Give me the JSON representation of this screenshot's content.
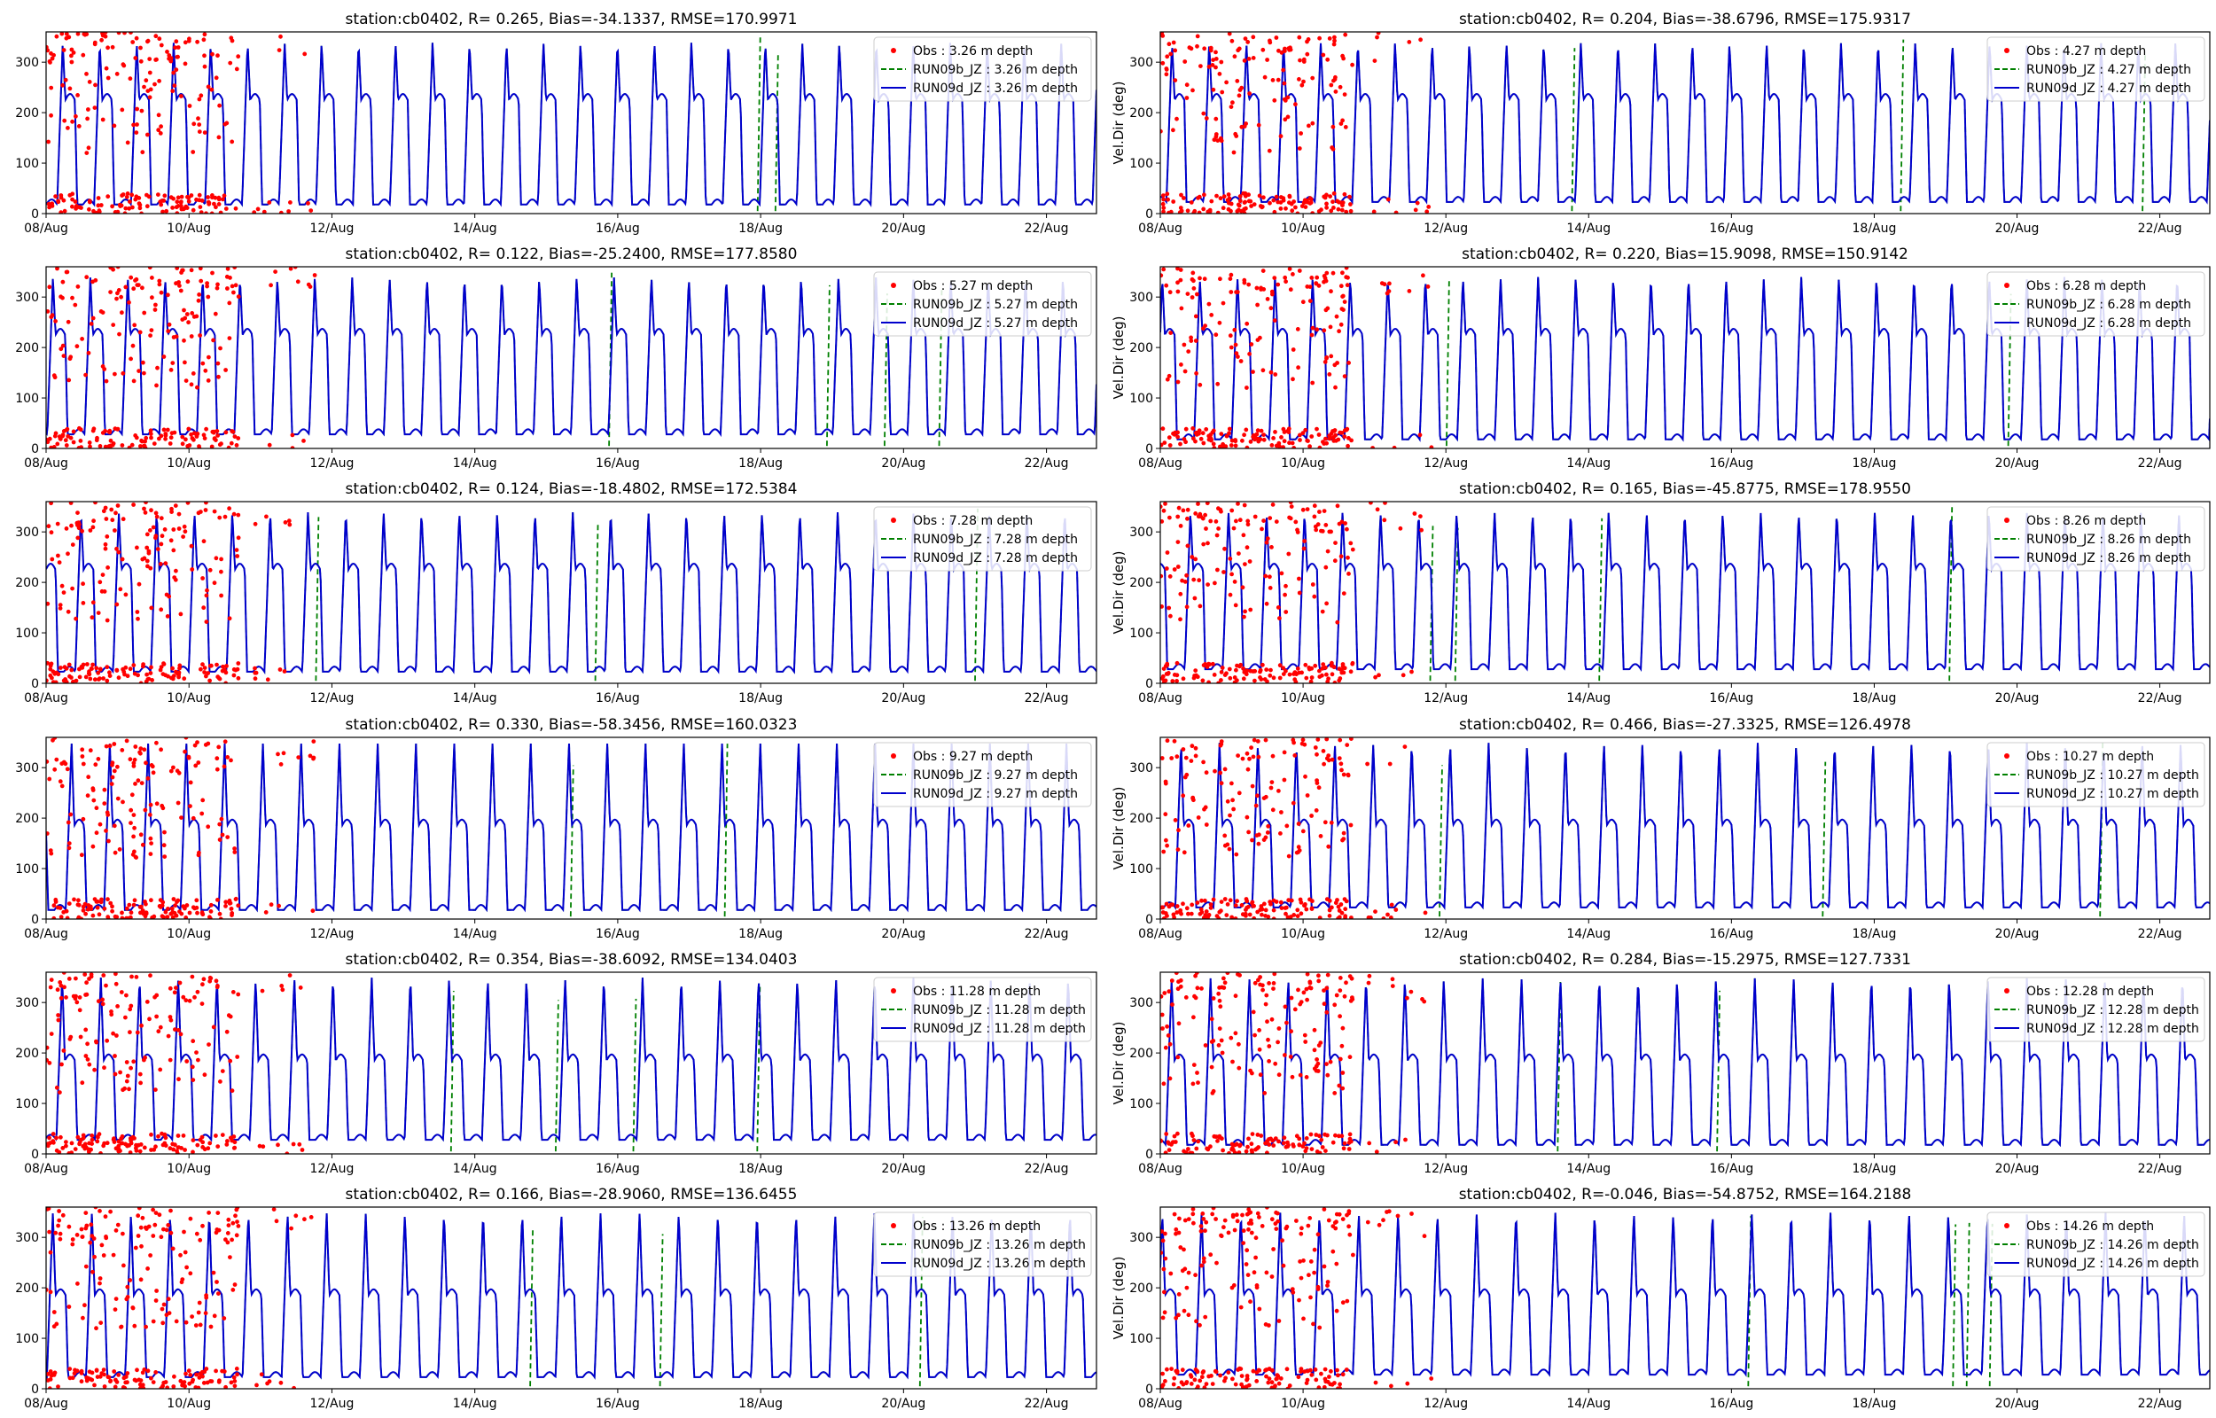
{
  "chart_data": [
    {
      "type": "line",
      "title": "station:cb0402, R= 0.265, Bias=-34.1337, RMSE=170.9971",
      "xlabel": "",
      "ylabel": "",
      "ylim": [
        0,
        360
      ],
      "yticks": [
        0,
        100,
        200,
        300
      ],
      "x_categories": [
        "08/Aug",
        "10/Aug",
        "12/Aug",
        "14/Aug",
        "16/Aug",
        "18/Aug",
        "20/Aug",
        "22/Aug"
      ],
      "xlim": [
        "08/Aug",
        "22/Aug + ~0.7 day"
      ],
      "legend_position": "top-right",
      "series": [
        {
          "name": "Obs : 3.26 m depth",
          "style": "red dots"
        },
        {
          "name": "RUN09b_JZ : 3.26 m depth",
          "style": "green dashed"
        },
        {
          "name": "RUN09d_JZ : 3.26 m depth",
          "style": "blue solid"
        }
      ]
    },
    {
      "type": "line",
      "title": "station:cb0402, R= 0.204, Bias=-38.6796, RMSE=175.9317",
      "xlabel": "",
      "ylabel": "Vel.Dir (deg)",
      "ylim": [
        0,
        360
      ],
      "yticks": [
        0,
        100,
        200,
        300
      ],
      "x_categories": [
        "08/Aug",
        "10/Aug",
        "12/Aug",
        "14/Aug",
        "16/Aug",
        "18/Aug",
        "20/Aug",
        "22/Aug"
      ],
      "legend_position": "top-right",
      "series": [
        {
          "name": "Obs : 4.27 m depth",
          "style": "red dots"
        },
        {
          "name": "RUN09b_JZ : 4.27 m depth",
          "style": "green dashed"
        },
        {
          "name": "RUN09d_JZ : 4.27 m depth",
          "style": "blue solid"
        }
      ]
    },
    {
      "type": "line",
      "title": "station:cb0402, R= 0.122, Bias=-25.2400, RMSE=177.8580",
      "xlabel": "",
      "ylabel": "",
      "ylim": [
        0,
        360
      ],
      "yticks": [
        0,
        100,
        200,
        300
      ],
      "x_categories": [
        "08/Aug",
        "10/Aug",
        "12/Aug",
        "14/Aug",
        "16/Aug",
        "18/Aug",
        "20/Aug",
        "22/Aug"
      ],
      "legend_position": "top-right",
      "series": [
        {
          "name": "Obs : 5.27 m depth",
          "style": "red dots"
        },
        {
          "name": "RUN09b_JZ : 5.27 m depth",
          "style": "green dashed"
        },
        {
          "name": "RUN09d_JZ : 5.27 m depth",
          "style": "blue solid"
        }
      ]
    },
    {
      "type": "line",
      "title": "station:cb0402, R= 0.220, Bias=15.9098, RMSE=150.9142",
      "xlabel": "",
      "ylabel": "Vel.Dir (deg)",
      "ylim": [
        0,
        360
      ],
      "yticks": [
        0,
        100,
        200,
        300
      ],
      "x_categories": [
        "08/Aug",
        "10/Aug",
        "12/Aug",
        "14/Aug",
        "16/Aug",
        "18/Aug",
        "20/Aug",
        "22/Aug"
      ],
      "legend_position": "top-right",
      "series": [
        {
          "name": "Obs : 6.28 m depth",
          "style": "red dots"
        },
        {
          "name": "RUN09b_JZ : 6.28 m depth",
          "style": "green dashed"
        },
        {
          "name": "RUN09d_JZ : 6.28 m depth",
          "style": "blue solid"
        }
      ]
    },
    {
      "type": "line",
      "title": "station:cb0402, R= 0.124, Bias=-18.4802, RMSE=172.5384",
      "xlabel": "",
      "ylabel": "",
      "ylim": [
        0,
        360
      ],
      "yticks": [
        0,
        100,
        200,
        300
      ],
      "x_categories": [
        "08/Aug",
        "10/Aug",
        "12/Aug",
        "14/Aug",
        "16/Aug",
        "18/Aug",
        "20/Aug",
        "22/Aug"
      ],
      "legend_position": "top-right",
      "series": [
        {
          "name": "Obs : 7.28 m depth",
          "style": "red dots"
        },
        {
          "name": "RUN09b_JZ : 7.28 m depth",
          "style": "green dashed"
        },
        {
          "name": "RUN09d_JZ : 7.28 m depth",
          "style": "blue solid"
        }
      ]
    },
    {
      "type": "line",
      "title": "station:cb0402, R= 0.165, Bias=-45.8775, RMSE=178.9550",
      "xlabel": "",
      "ylabel": "Vel.Dir (deg)",
      "ylim": [
        0,
        360
      ],
      "yticks": [
        0,
        100,
        200,
        300
      ],
      "x_categories": [
        "08/Aug",
        "10/Aug",
        "12/Aug",
        "14/Aug",
        "16/Aug",
        "18/Aug",
        "20/Aug",
        "22/Aug"
      ],
      "legend_position": "top-right",
      "series": [
        {
          "name": "Obs : 8.26 m depth",
          "style": "red dots"
        },
        {
          "name": "RUN09b_JZ : 8.26 m depth",
          "style": "green dashed"
        },
        {
          "name": "RUN09d_JZ : 8.26 m depth",
          "style": "blue solid"
        }
      ]
    },
    {
      "type": "line",
      "title": "station:cb0402, R= 0.330, Bias=-58.3456, RMSE=160.0323",
      "xlabel": "",
      "ylabel": "",
      "ylim": [
        0,
        360
      ],
      "yticks": [
        0,
        100,
        200,
        300
      ],
      "x_categories": [
        "08/Aug",
        "10/Aug",
        "12/Aug",
        "14/Aug",
        "16/Aug",
        "18/Aug",
        "20/Aug",
        "22/Aug"
      ],
      "legend_position": "top-right",
      "series": [
        {
          "name": "Obs : 9.27 m depth",
          "style": "red dots"
        },
        {
          "name": "RUN09b_JZ : 9.27 m depth",
          "style": "green dashed"
        },
        {
          "name": "RUN09d_JZ : 9.27 m depth",
          "style": "blue solid"
        }
      ]
    },
    {
      "type": "line",
      "title": "station:cb0402, R= 0.466, Bias=-27.3325, RMSE=126.4978",
      "xlabel": "",
      "ylabel": "Vel.Dir (deg)",
      "ylim": [
        0,
        360
      ],
      "yticks": [
        0,
        100,
        200,
        300
      ],
      "x_categories": [
        "08/Aug",
        "10/Aug",
        "12/Aug",
        "14/Aug",
        "16/Aug",
        "18/Aug",
        "20/Aug",
        "22/Aug"
      ],
      "legend_position": "top-right",
      "series": [
        {
          "name": "Obs : 10.27 m depth",
          "style": "red dots"
        },
        {
          "name": "RUN09b_JZ : 10.27 m depth",
          "style": "green dashed"
        },
        {
          "name": "RUN09d_JZ : 10.27 m depth",
          "style": "blue solid"
        }
      ]
    },
    {
      "type": "line",
      "title": "station:cb0402, R= 0.354, Bias=-38.6092, RMSE=134.0403",
      "xlabel": "",
      "ylabel": "",
      "ylim": [
        0,
        360
      ],
      "yticks": [
        0,
        100,
        200,
        300
      ],
      "x_categories": [
        "08/Aug",
        "10/Aug",
        "12/Aug",
        "14/Aug",
        "16/Aug",
        "18/Aug",
        "20/Aug",
        "22/Aug"
      ],
      "legend_position": "top-right",
      "series": [
        {
          "name": "Obs : 11.28 m depth",
          "style": "red dots"
        },
        {
          "name": "RUN09b_JZ : 11.28 m depth",
          "style": "green dashed"
        },
        {
          "name": "RUN09d_JZ : 11.28 m depth",
          "style": "blue solid"
        }
      ]
    },
    {
      "type": "line",
      "title": "station:cb0402, R= 0.284, Bias=-15.2975, RMSE=127.7331",
      "xlabel": "",
      "ylabel": "Vel.Dir (deg)",
      "ylim": [
        0,
        360
      ],
      "yticks": [
        0,
        100,
        200,
        300
      ],
      "x_categories": [
        "08/Aug",
        "10/Aug",
        "12/Aug",
        "14/Aug",
        "16/Aug",
        "18/Aug",
        "20/Aug",
        "22/Aug"
      ],
      "legend_position": "top-right",
      "series": [
        {
          "name": "Obs : 12.28 m depth",
          "style": "red dots"
        },
        {
          "name": "RUN09b_JZ : 12.28 m depth",
          "style": "green dashed"
        },
        {
          "name": "RUN09d_JZ : 12.28 m depth",
          "style": "blue solid"
        }
      ]
    },
    {
      "type": "line",
      "title": "station:cb0402, R= 0.166, Bias=-28.9060, RMSE=136.6455",
      "xlabel": "",
      "ylabel": "",
      "ylim": [
        0,
        360
      ],
      "yticks": [
        0,
        100,
        200,
        300
      ],
      "x_categories": [
        "08/Aug",
        "10/Aug",
        "12/Aug",
        "14/Aug",
        "16/Aug",
        "18/Aug",
        "20/Aug",
        "22/Aug"
      ],
      "legend_position": "top-right",
      "series": [
        {
          "name": "Obs : 13.26 m depth",
          "style": "red dots"
        },
        {
          "name": "RUN09b_JZ : 13.26 m depth",
          "style": "green dashed"
        },
        {
          "name": "RUN09d_JZ : 13.26 m depth",
          "style": "blue solid"
        }
      ]
    },
    {
      "type": "line",
      "title": "station:cb0402, R=-0.046, Bias=-54.8752, RMSE=164.2188",
      "xlabel": "",
      "ylabel": "Vel.Dir (deg)",
      "ylim": [
        0,
        360
      ],
      "yticks": [
        0,
        100,
        200,
        300
      ],
      "x_categories": [
        "08/Aug",
        "10/Aug",
        "12/Aug",
        "14/Aug",
        "16/Aug",
        "18/Aug",
        "20/Aug",
        "22/Aug"
      ],
      "legend_position": "top-right",
      "series": [
        {
          "name": "Obs : 14.26 m depth",
          "style": "red dots"
        },
        {
          "name": "RUN09b_JZ : 14.26 m depth",
          "style": "green dashed"
        },
        {
          "name": "RUN09d_JZ : 14.26 m depth",
          "style": "blue solid"
        }
      ]
    }
  ],
  "colors": {
    "obs": "#ff0000",
    "run09b": "#008000",
    "run09d": "#0000cc",
    "axes": "#000000"
  }
}
